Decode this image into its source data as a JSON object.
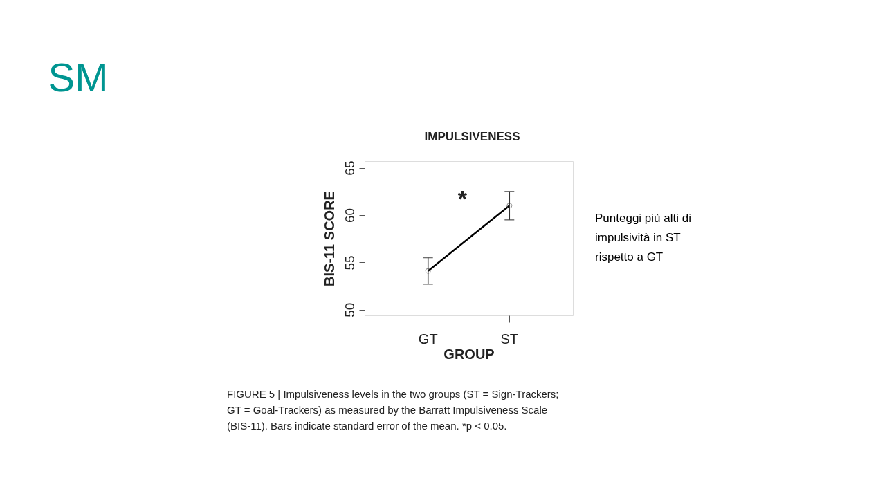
{
  "chart_data": {
    "type": "line",
    "title": "IMPULSIVENESS",
    "xlabel": "GROUP",
    "ylabel": "BIS-11 SCORE",
    "categories": [
      "GT",
      "ST"
    ],
    "series": [
      {
        "color": "#000000",
        "values": [
          54.1,
          61.0
        ],
        "errors": [
          [
            52.7,
            55.5
          ],
          [
            59.5,
            62.5
          ]
        ]
      }
    ],
    "ylim": [
      49.4,
      65.7
    ],
    "yticks": [
      50,
      55,
      60,
      65
    ],
    "grid": false,
    "marker": "circle",
    "line_style": "solid",
    "annotations": [
      "*",
      "Punteggi più alti di\nimpulsività in ST\nrispetto a GT",
      "FIGURE 5 | Impulsiveness levels in the two groups (ST = Sign-Trackers;\nGT = Goal-Trackers) as measured by the Barratt Impulsiveness Scale\n(BIS-11). Bars indicate standard error of the mean. *p < 0.05.",
      "SM"
    ]
  }
}
